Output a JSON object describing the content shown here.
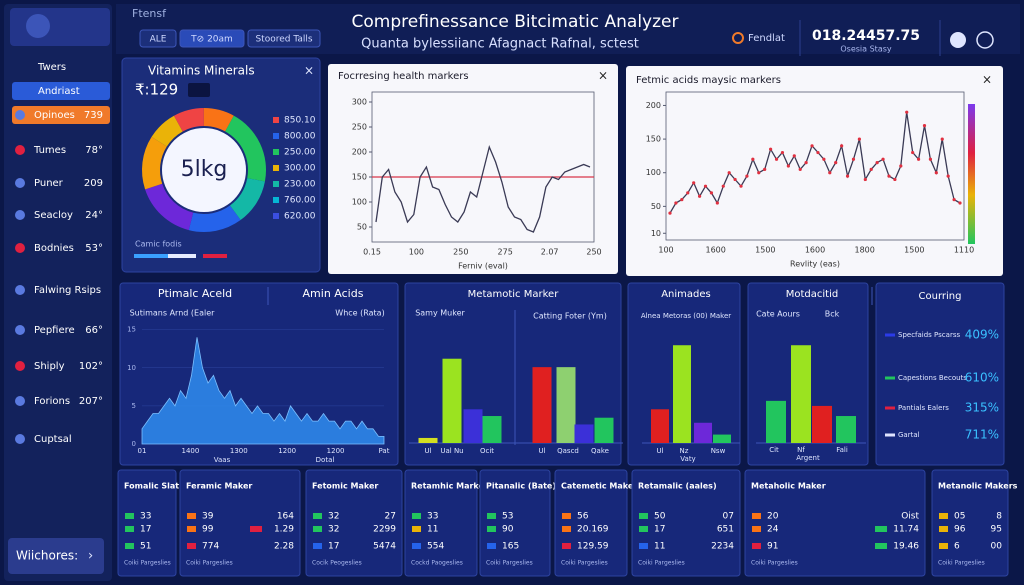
{
  "header": {
    "app_label": "Ftensf",
    "tabs": [
      "ALE",
      "T⊘ 20am",
      "Stoored Talls"
    ],
    "title": "Comprefinessance Bitcimatic Analyzer",
    "subtitle": "Quanta bylessiianc Afagnact Rafnal, sctest",
    "status": "Fendlat",
    "value": "018.24457.75",
    "value_caption": "Osesia Stasy"
  },
  "sidebar": {
    "items": [
      {
        "label": "Twers"
      },
      {
        "label": "Andriast"
      },
      {
        "label": "Opinoes",
        "value": "739"
      },
      {
        "label": "Tumes",
        "value": "78°"
      },
      {
        "label": "Puner",
        "value": "209"
      },
      {
        "label": "Seacloy",
        "value": "24°"
      },
      {
        "label": "Bodnies",
        "value": "53°"
      },
      {
        "label": "Falwing Rsips"
      },
      {
        "label": "Pepfiere",
        "value": "66°"
      },
      {
        "label": "Shiply",
        "value": "102°"
      },
      {
        "label": "Forions",
        "value": "207°"
      },
      {
        "label": "Cuptsal"
      }
    ],
    "button": "Wiichores:"
  },
  "vitamins": {
    "title": "Vitamins Minerals",
    "reading": "₹:129",
    "center": "5lkg",
    "segments": [
      {
        "color": "#22c55e",
        "value": 20
      },
      {
        "color": "#14b8a6",
        "value": 12
      },
      {
        "color": "#2563eb",
        "value": 14
      },
      {
        "color": "#6d28d9",
        "value": 16
      },
      {
        "color": "#f59e0b",
        "value": 14
      },
      {
        "color": "#eab308",
        "value": 8
      },
      {
        "color": "#ef4444",
        "value": 8
      },
      {
        "color": "#f97316",
        "value": 8
      }
    ],
    "legend": [
      {
        "color": "#ef4444",
        "label": "850.10"
      },
      {
        "color": "#2563eb",
        "label": "800.00"
      },
      {
        "color": "#22c55e",
        "label": "250.00"
      },
      {
        "color": "#eab308",
        "label": "300.00"
      },
      {
        "color": "#14b8a6",
        "label": "230.00"
      },
      {
        "color": "#06b6d4",
        "label": "760.00"
      },
      {
        "color": "#3b4fe0",
        "label": "620.00"
      }
    ],
    "footer": "Camic fodis"
  },
  "health_chart": {
    "type": "line",
    "title": "Focrresing health markers",
    "x_label": "Ferniv (eval)",
    "xtick_labels": [
      "0.15",
      "100",
      "250",
      "275",
      "2.07",
      "250"
    ],
    "ylim": [
      20,
      320
    ],
    "yticks": [
      50,
      100,
      150,
      200,
      250,
      300
    ],
    "reference": 150,
    "color": "#3a3a55",
    "reference_color": "#d9364a",
    "values": [
      60,
      150,
      165,
      120,
      100,
      60,
      75,
      150,
      170,
      130,
      125,
      95,
      70,
      60,
      80,
      120,
      110,
      160,
      210,
      180,
      140,
      90,
      70,
      65,
      45,
      40,
      70,
      130,
      150,
      145,
      160,
      165,
      170,
      175,
      170
    ]
  },
  "fatty_chart": {
    "type": "line",
    "title": "Fetmic acids maysic markers",
    "x_label": "Revlity (eas)",
    "xtick_labels": [
      "100",
      "1600",
      "1500",
      "1600",
      "1800",
      "1500",
      "1110"
    ],
    "ylim": [
      0,
      220
    ],
    "yticks": [
      10,
      50,
      100,
      150,
      200
    ],
    "color": "#3a3a55",
    "marker_color": "#e03040",
    "values": [
      40,
      55,
      60,
      70,
      85,
      65,
      80,
      70,
      55,
      80,
      100,
      90,
      80,
      95,
      120,
      100,
      105,
      135,
      120,
      130,
      110,
      125,
      105,
      115,
      140,
      130,
      120,
      100,
      115,
      140,
      95,
      120,
      150,
      90,
      105,
      115,
      120,
      95,
      90,
      110,
      190,
      130,
      120,
      170,
      120,
      100,
      150,
      95,
      60,
      55
    ]
  },
  "amino_chart": {
    "type": "area",
    "tabs": [
      "Ptimalc Aceld",
      "Amin Acids"
    ],
    "subheaders": [
      "Sutimans Arnd (Ealer",
      "Whce (Rata)"
    ],
    "xtick_labels": [
      "01",
      "1400",
      "1300",
      "1200",
      "1200",
      "Pat"
    ],
    "captions": [
      "Vaas",
      "Dotal"
    ],
    "ylim": [
      0,
      16
    ],
    "yticks": [
      0,
      5,
      10,
      15
    ],
    "color": "#2f8cf0",
    "values": [
      2,
      3,
      4,
      4,
      5,
      6,
      5,
      7,
      6,
      9,
      14,
      10,
      8,
      9,
      7,
      6,
      7,
      5,
      6,
      5,
      4,
      5,
      4,
      4,
      3,
      4,
      3,
      5,
      4,
      3,
      4,
      3,
      3,
      4,
      3,
      3,
      2,
      3,
      3,
      2,
      3,
      2,
      2,
      1,
      1
    ]
  },
  "metabolic_chart": {
    "type": "bar",
    "title": "Metamotic Marker",
    "subheaders": [
      "Samy Muker",
      "Catting Foter (Ym)"
    ],
    "xtick_labels": [
      "Ul",
      "Ual Nu",
      "Ocit",
      "Ul",
      "Qascd",
      "Qake"
    ],
    "ylim": [
      0,
      70
    ],
    "values": [
      3,
      50,
      20,
      16,
      45,
      45,
      11,
      15
    ],
    "colors": [
      "#d4e020",
      "#9be320",
      "#3b30d8",
      "#22c55e",
      "#e02020",
      "#8ed070",
      "#3b30d8",
      "#22c55e"
    ]
  },
  "animades_chart": {
    "type": "bar",
    "title": "Animades",
    "subheader": "Alnea Metoras (00) Maker",
    "xtick_labels": [
      "Ul",
      "Nz",
      "Nsw"
    ],
    "caption": "Vaty",
    "ylim": [
      0,
      70
    ],
    "values": [
      20,
      58,
      12,
      5
    ],
    "colors": [
      "#e02020",
      "#9be320",
      "#6d28d9",
      "#22c55e"
    ]
  },
  "motd_chart": {
    "type": "bar",
    "title": "Motdacitid",
    "subheaders": [
      "Cate Aours",
      "Bck"
    ],
    "xtick_labels": [
      "Cit",
      "Nf",
      "Fali"
    ],
    "caption": "Argent",
    "ylim": [
      0,
      70
    ],
    "values": [
      25,
      58,
      22,
      16
    ],
    "colors": [
      "#22c55e",
      "#9be320",
      "#e02020",
      "#22c55e"
    ]
  },
  "occurring": {
    "title": "Courring",
    "rows": [
      {
        "label": "Specfaids Pscarss",
        "color": "#2b3be8",
        "value": "409%"
      },
      {
        "label": "Capestions Becouts",
        "color": "#22c55e",
        "value": "610%"
      },
      {
        "label": "Pantials Ealers",
        "color": "#e02040",
        "value": "315%"
      },
      {
        "label": "Gartal",
        "color": "#dfe4ff",
        "value": "711%"
      }
    ]
  },
  "cards": [
    {
      "title": "Fomalic Slater",
      "rows": [
        {
          "color": "#22c55e",
          "value": "33"
        },
        {
          "color": "#22c55e",
          "value": "17"
        },
        {
          "color": "#22c55e",
          "value": "51"
        }
      ],
      "footer": "Coiki Pargeslies"
    },
    {
      "title": "Feramic Maker",
      "rows": [
        {
          "color": "#f97316",
          "value": "39",
          "value2": "164"
        },
        {
          "color": "#f97316",
          "value": "99",
          "color2": "#e02040",
          "value2": "1.29"
        },
        {
          "color": "#e02040",
          "value": "774",
          "value2": "2.28"
        }
      ],
      "footer": "Coiki Pargeslies"
    },
    {
      "title": "Fetomic Maker",
      "rows": [
        {
          "color": "#22c55e",
          "value": "32",
          "value2": "27"
        },
        {
          "color": "#22c55e",
          "value": "32",
          "value2": "2299"
        },
        {
          "color": "#2563eb",
          "value": "17",
          "value2": "5474"
        }
      ],
      "footer": "Cocik Peogeslies"
    },
    {
      "title": "Retamhic Marker",
      "rows": [
        {
          "color": "#22c55e",
          "value": "33"
        },
        {
          "color": "#eab308",
          "value": "11"
        },
        {
          "color": "#2563eb",
          "value": "554"
        }
      ],
      "footer": "Cockd Paogeslies"
    },
    {
      "title": "Pitanalic (Bate)",
      "rows": [
        {
          "color": "#22c55e",
          "value": "53"
        },
        {
          "color": "#22c55e",
          "value": "90"
        },
        {
          "color": "#2563eb",
          "value": "165"
        }
      ],
      "footer": "Coiki Pargeslies"
    },
    {
      "title": "Catemetic Makes",
      "rows": [
        {
          "color": "#f97316",
          "value": "56"
        },
        {
          "color": "#f97316",
          "value": "20.169"
        },
        {
          "color": "#e02040",
          "value": "129.59"
        }
      ],
      "footer": "Coiki Pargeslies"
    },
    {
      "title": "Retamalic (aales)",
      "rows": [
        {
          "color": "#22c55e",
          "value": "50",
          "value2": "07"
        },
        {
          "color": "#22c55e",
          "value": "17",
          "value2": "651"
        },
        {
          "color": "#2563eb",
          "value": "11",
          "value2": "2234"
        }
      ],
      "footer": "Coiki Pargeslies"
    },
    {
      "title": "Metaholic Maker",
      "rows": [
        {
          "color": "#f97316",
          "value": "20",
          "value2": "Oist"
        },
        {
          "color": "#f97316",
          "value": "24",
          "color2": "#22c55e",
          "value2": "11.74"
        },
        {
          "color": "#e02040",
          "value": "91",
          "color2": "#22c55e",
          "value2": "19.46"
        }
      ],
      "footer": "Coiki Pargeslies"
    },
    {
      "title": "Metanolic Makers",
      "rows": [
        {
          "color": "#eab308",
          "value": "05",
          "value2": "8"
        },
        {
          "color": "#eab308",
          "value": "96",
          "value2": "95"
        },
        {
          "color": "#eab308",
          "value": "6",
          "value2": "00"
        }
      ],
      "footer": "Coiki Pargeslies"
    }
  ]
}
